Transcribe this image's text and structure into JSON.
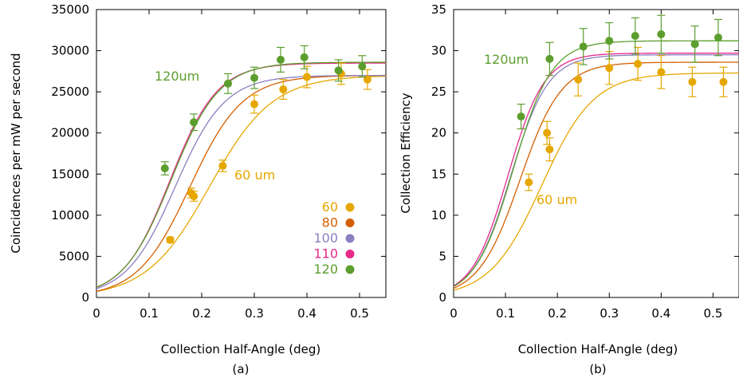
{
  "chart_data": [
    {
      "type": "scatter",
      "panel_label": "(a)",
      "xlabel": "Collection Half-Angle (deg)",
      "ylabel": "Coincidences per mW per second",
      "xlim": [
        0,
        0.55
      ],
      "ylim": [
        0,
        35000
      ],
      "xticks": [
        0,
        0.1,
        0.2,
        0.3,
        0.4,
        0.5
      ],
      "yticks": [
        0,
        5000,
        10000,
        15000,
        20000,
        25000,
        30000,
        35000
      ],
      "xtick_labels": [
        "0",
        "0.1",
        "0.2",
        "0.3",
        "0.4",
        "0.5"
      ],
      "ytick_labels": [
        "0",
        "5000",
        "10000",
        "15000",
        "20000",
        "25000",
        "30000",
        "35000"
      ],
      "legend_position": "bottom-right",
      "annotations": [
        "120um",
        "60 um"
      ],
      "series": [
        {
          "name": "60",
          "color": "#e6a700",
          "points": [
            [
              0.14,
              7000,
              300
            ],
            [
              0.18,
              12700,
              600
            ],
            [
              0.185,
              12300,
              600
            ],
            [
              0.24,
              16000,
              700
            ],
            [
              0.3,
              23500,
              1100
            ],
            [
              0.355,
              25300,
              1200
            ],
            [
              0.4,
              26800,
              1300
            ],
            [
              0.465,
              27200,
              1300
            ],
            [
              0.515,
              26500,
              1200
            ]
          ],
          "fit": {
            "plateau": 27000,
            "x50": 0.215,
            "width": 0.06
          }
        },
        {
          "name": "80",
          "color": "#d45f00",
          "points": [],
          "fit": {
            "plateau": 27000,
            "x50": 0.178,
            "width": 0.05
          }
        },
        {
          "name": "100",
          "color": "#8b7fc1",
          "points": [],
          "fit": {
            "plateau": 27000,
            "x50": 0.15,
            "width": 0.047
          }
        },
        {
          "name": "110",
          "color": "#e6298a",
          "points": [],
          "fit": {
            "plateau": 28500,
            "x50": 0.14,
            "width": 0.045
          }
        },
        {
          "name": "120",
          "color": "#5c9e2e",
          "points": [
            [
              0.13,
              15700,
              800
            ],
            [
              0.185,
              21300,
              1000
            ],
            [
              0.25,
              26000,
              1200
            ],
            [
              0.3,
              26700,
              1300
            ],
            [
              0.35,
              28900,
              1500
            ],
            [
              0.395,
              29200,
              1400
            ],
            [
              0.46,
              27600,
              1300
            ],
            [
              0.505,
              28100,
              1300
            ]
          ],
          "fit": {
            "plateau": 28600,
            "x50": 0.142,
            "width": 0.046
          }
        }
      ]
    },
    {
      "type": "scatter",
      "panel_label": "(b)",
      "xlabel": "Collection Half-Angle (deg)",
      "ylabel": "Collection Efficiency",
      "xlim": [
        0,
        0.55
      ],
      "ylim": [
        0,
        35
      ],
      "xticks": [
        0,
        0.1,
        0.2,
        0.3,
        0.4,
        0.5
      ],
      "yticks": [
        0,
        5,
        10,
        15,
        20,
        25,
        30,
        35
      ],
      "xtick_labels": [
        "0",
        "0.1",
        "0.2",
        "0.3",
        "0.4",
        "0.5"
      ],
      "ytick_labels": [
        "0",
        "5",
        "10",
        "15",
        "20",
        "25",
        "30",
        "35"
      ],
      "annotations": [
        "120um",
        "60 um"
      ],
      "series": [
        {
          "name": "60",
          "color": "#e6a700",
          "points": [
            [
              0.145,
              14,
              1
            ],
            [
              0.18,
              20,
              1.4
            ],
            [
              0.185,
              18,
              1.4
            ],
            [
              0.24,
              26.5,
              2
            ],
            [
              0.3,
              27.9,
              2
            ],
            [
              0.355,
              28.4,
              2
            ],
            [
              0.4,
              27.4,
              2
            ],
            [
              0.46,
              26.2,
              1.8
            ],
            [
              0.52,
              26.2,
              1.8
            ]
          ],
          "fit": {
            "plateau": 27.3,
            "x50": 0.17,
            "width": 0.05
          }
        },
        {
          "name": "80",
          "color": "#d45f00",
          "points": [],
          "fit": {
            "plateau": 28.6,
            "x50": 0.128,
            "width": 0.04
          }
        },
        {
          "name": "100",
          "color": "#8b7fc1",
          "points": [],
          "fit": {
            "plateau": 29.5,
            "x50": 0.11,
            "width": 0.036
          }
        },
        {
          "name": "110",
          "color": "#e6298a",
          "points": [],
          "fit": {
            "plateau": 29.7,
            "x50": 0.105,
            "width": 0.035
          }
        },
        {
          "name": "120",
          "color": "#5c9e2e",
          "points": [
            [
              0.13,
              22,
              1.5
            ],
            [
              0.185,
              29,
              2
            ],
            [
              0.25,
              30.5,
              2.2
            ],
            [
              0.3,
              31.2,
              2.2
            ],
            [
              0.35,
              31.8,
              2.2
            ],
            [
              0.4,
              32,
              2.3
            ],
            [
              0.465,
              30.8,
              2.2
            ],
            [
              0.51,
              31.6,
              2.2
            ]
          ],
          "fit": {
            "plateau": 31.2,
            "x50": 0.115,
            "width": 0.037
          }
        }
      ]
    }
  ]
}
